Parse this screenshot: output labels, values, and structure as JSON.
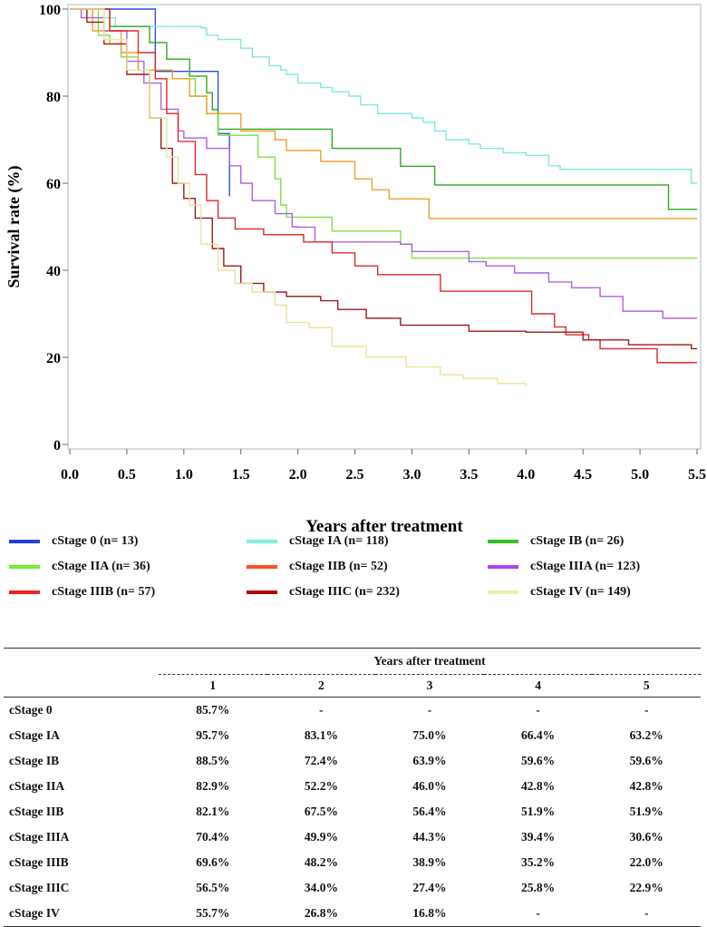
{
  "chart_data": {
    "type": "line",
    "title": "",
    "xlabel": "Years after treatment",
    "ylabel": "Survival rate (%)",
    "xlim": [
      0,
      5.5
    ],
    "ylim": [
      0,
      100
    ],
    "xticks": [
      "0.0",
      "0.5",
      "1.0",
      "1.5",
      "2.0",
      "2.5",
      "3.0",
      "3.5",
      "4.0",
      "4.5",
      "5.0",
      "5.5"
    ],
    "yticks": [
      "0",
      "20",
      "40",
      "60",
      "80",
      "100"
    ],
    "legend_position": "bottom",
    "series": [
      {
        "name": "cStage 0 (n= 13)",
        "color": "#2a4fe0",
        "steps": [
          [
            0,
            100
          ],
          [
            0.75,
            85.7
          ],
          [
            1.3,
            71.4
          ],
          [
            1.4,
            57
          ]
        ],
        "end": 1.4
      },
      {
        "name": "cStage IA (n= 118)",
        "color": "#7fe8e0",
        "steps": [
          [
            0,
            100
          ],
          [
            0.2,
            98
          ],
          [
            0.4,
            96
          ],
          [
            1.15,
            95.7
          ],
          [
            1.2,
            94
          ],
          [
            1.3,
            93
          ],
          [
            1.5,
            91
          ],
          [
            1.6,
            89
          ],
          [
            1.75,
            87
          ],
          [
            1.85,
            86
          ],
          [
            1.9,
            85
          ],
          [
            2.0,
            83
          ],
          [
            2.2,
            82
          ],
          [
            2.3,
            81
          ],
          [
            2.45,
            80
          ],
          [
            2.55,
            78
          ],
          [
            2.7,
            76
          ],
          [
            3.0,
            75
          ],
          [
            3.1,
            74
          ],
          [
            3.2,
            72
          ],
          [
            3.3,
            70
          ],
          [
            3.5,
            69
          ],
          [
            3.6,
            68
          ],
          [
            3.8,
            67
          ],
          [
            4.0,
            66.4
          ],
          [
            4.2,
            64
          ],
          [
            4.3,
            63.2
          ],
          [
            5.45,
            60
          ]
        ],
        "end": 5.5
      },
      {
        "name": "cStage IB (n= 26)",
        "color": "#2eaa22",
        "steps": [
          [
            0,
            100
          ],
          [
            0.35,
            96
          ],
          [
            0.7,
            92.3
          ],
          [
            0.85,
            88.5
          ],
          [
            1.05,
            84.6
          ],
          [
            1.2,
            80.8
          ],
          [
            1.25,
            76.9
          ],
          [
            1.3,
            72.4
          ],
          [
            2.3,
            68
          ],
          [
            2.9,
            63.9
          ],
          [
            3.2,
            59.6
          ],
          [
            5.25,
            54
          ]
        ],
        "end": 5.5
      },
      {
        "name": "cStage IIA (n= 36)",
        "color": "#7fe040",
        "steps": [
          [
            0,
            100
          ],
          [
            0.25,
            94
          ],
          [
            0.35,
            92
          ],
          [
            0.45,
            89
          ],
          [
            0.6,
            86
          ],
          [
            0.9,
            84
          ],
          [
            1.1,
            80
          ],
          [
            1.2,
            76
          ],
          [
            1.3,
            71
          ],
          [
            1.65,
            66
          ],
          [
            1.8,
            61
          ],
          [
            1.85,
            55
          ],
          [
            1.9,
            52.2
          ],
          [
            2.3,
            49
          ],
          [
            2.9,
            46
          ],
          [
            3.0,
            42.8
          ]
        ],
        "end": 5.5
      },
      {
        "name": "cStage IIB (n= 52)",
        "color": "#f0a030",
        "steps": [
          [
            0,
            100
          ],
          [
            0.2,
            95
          ],
          [
            0.45,
            90
          ],
          [
            0.6,
            86
          ],
          [
            0.9,
            84
          ],
          [
            1.05,
            80
          ],
          [
            1.2,
            76
          ],
          [
            1.5,
            72
          ],
          [
            1.8,
            70
          ],
          [
            1.9,
            67.5
          ],
          [
            2.2,
            65
          ],
          [
            2.5,
            61
          ],
          [
            2.65,
            58.5
          ],
          [
            2.8,
            56.4
          ],
          [
            3.15,
            51.9
          ]
        ],
        "end": 5.5
      },
      {
        "name": "cStage IIIA (n= 123)",
        "color": "#b060e0",
        "steps": [
          [
            0,
            100
          ],
          [
            0.1,
            98
          ],
          [
            0.3,
            95
          ],
          [
            0.5,
            88
          ],
          [
            0.65,
            83
          ],
          [
            0.8,
            77
          ],
          [
            0.95,
            72
          ],
          [
            1.0,
            70.4
          ],
          [
            1.2,
            68
          ],
          [
            1.4,
            64
          ],
          [
            1.5,
            60
          ],
          [
            1.6,
            56
          ],
          [
            1.8,
            53
          ],
          [
            1.95,
            50
          ],
          [
            2.0,
            49.9
          ],
          [
            2.15,
            46.5
          ],
          [
            2.9,
            46
          ],
          [
            3.0,
            44.3
          ],
          [
            3.5,
            42
          ],
          [
            3.65,
            41
          ],
          [
            3.9,
            39.4
          ],
          [
            4.2,
            37.3
          ],
          [
            4.4,
            36
          ],
          [
            4.65,
            34
          ],
          [
            4.85,
            30.6
          ],
          [
            5.2,
            29
          ]
        ],
        "end": 5.5
      },
      {
        "name": "cStage IIIB (n= 57)",
        "color": "#e02828",
        "steps": [
          [
            0,
            100
          ],
          [
            0.35,
            95
          ],
          [
            0.6,
            90
          ],
          [
            0.75,
            84
          ],
          [
            0.85,
            76
          ],
          [
            0.95,
            69.6
          ],
          [
            1.1,
            62
          ],
          [
            1.2,
            56
          ],
          [
            1.3,
            52
          ],
          [
            1.45,
            49.5
          ],
          [
            1.7,
            48.2
          ],
          [
            2.05,
            46.5
          ],
          [
            2.3,
            44
          ],
          [
            2.5,
            41
          ],
          [
            2.7,
            39
          ],
          [
            3.25,
            35.2
          ],
          [
            4.05,
            30
          ],
          [
            4.25,
            27
          ],
          [
            4.35,
            25.2
          ],
          [
            4.55,
            24
          ],
          [
            4.65,
            22
          ],
          [
            5.15,
            18.8
          ]
        ],
        "end": 5.5
      },
      {
        "name": "cStage IIIC (n= 232)",
        "color": "#a01818",
        "steps": [
          [
            0,
            100
          ],
          [
            0.15,
            97
          ],
          [
            0.3,
            92
          ],
          [
            0.5,
            85
          ],
          [
            0.7,
            75
          ],
          [
            0.8,
            68
          ],
          [
            0.9,
            60
          ],
          [
            1.0,
            56.5
          ],
          [
            1.1,
            52
          ],
          [
            1.25,
            45
          ],
          [
            1.35,
            41
          ],
          [
            1.5,
            37
          ],
          [
            1.7,
            35
          ],
          [
            1.9,
            34
          ],
          [
            2.2,
            33
          ],
          [
            2.35,
            31
          ],
          [
            2.6,
            29
          ],
          [
            2.9,
            27.4
          ],
          [
            3.5,
            26
          ],
          [
            4.0,
            25.8
          ],
          [
            4.5,
            24
          ],
          [
            4.9,
            22.9
          ],
          [
            5.45,
            22
          ]
        ],
        "end": 5.5
      },
      {
        "name": "cStage IV (n= 149)",
        "color": "#ece29a",
        "steps": [
          [
            0,
            100
          ],
          [
            0.3,
            93
          ],
          [
            0.5,
            86
          ],
          [
            0.7,
            75
          ],
          [
            0.85,
            66
          ],
          [
            0.95,
            60
          ],
          [
            1.05,
            55
          ],
          [
            1.15,
            46
          ],
          [
            1.3,
            40
          ],
          [
            1.45,
            37
          ],
          [
            1.6,
            35
          ],
          [
            1.8,
            32
          ],
          [
            1.9,
            28
          ],
          [
            2.1,
            26.8
          ],
          [
            2.3,
            22.5
          ],
          [
            2.6,
            20.1
          ],
          [
            2.95,
            17.8
          ],
          [
            3.25,
            16
          ],
          [
            3.45,
            15.2
          ],
          [
            3.75,
            14
          ],
          [
            4.0,
            13.4
          ]
        ],
        "end": 4.0
      }
    ]
  },
  "table": {
    "group_header": "Years after treatment",
    "columns": [
      "1",
      "2",
      "3",
      "4",
      "5"
    ],
    "rows": [
      {
        "label": "cStage 0",
        "values": [
          "85.7%",
          "-",
          "-",
          "-",
          "-"
        ]
      },
      {
        "label": "cStage IA",
        "values": [
          "95.7%",
          "83.1%",
          "75.0%",
          "66.4%",
          "63.2%"
        ]
      },
      {
        "label": "cStage IB",
        "values": [
          "88.5%",
          "72.4%",
          "63.9%",
          "59.6%",
          "59.6%"
        ]
      },
      {
        "label": "cStage IIA",
        "values": [
          "82.9%",
          "52.2%",
          "46.0%",
          "42.8%",
          "42.8%"
        ]
      },
      {
        "label": "cStage IIB",
        "values": [
          "82.1%",
          "67.5%",
          "56.4%",
          "51.9%",
          "51.9%"
        ]
      },
      {
        "label": "cStage IIIA",
        "values": [
          "70.4%",
          "49.9%",
          "44.3%",
          "39.4%",
          "30.6%"
        ]
      },
      {
        "label": "cStage IIIB",
        "values": [
          "69.6%",
          "48.2%",
          "38.9%",
          "35.2%",
          "22.0%"
        ]
      },
      {
        "label": "cStage IIIC",
        "values": [
          "56.5%",
          "34.0%",
          "27.4%",
          "25.8%",
          "22.9%"
        ]
      },
      {
        "label": "cStage IV",
        "values": [
          "55.7%",
          "26.8%",
          "16.8%",
          "-",
          "-"
        ]
      }
    ]
  },
  "legend_swatch_colors": [
    "#2040e0",
    "#80f0e0",
    "#30c020",
    "#70f030",
    "#ff5020",
    "#b040f0",
    "#f02020",
    "#b00808",
    "#e8f0b0"
  ]
}
